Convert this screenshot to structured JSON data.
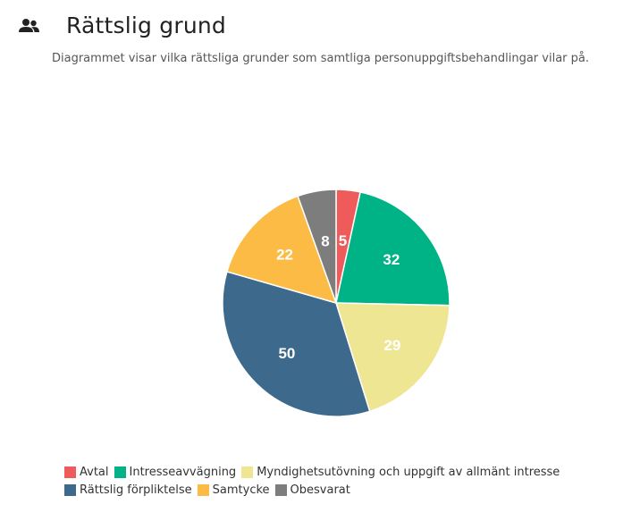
{
  "header": {
    "icon": "people-icon",
    "title": "Rättslig grund",
    "subtitle": "Diagrammet visar vilka rättsliga grunder som samtliga personuppgiftsbehandlingar vilar på."
  },
  "chart_data": {
    "type": "pie",
    "title": "",
    "categories": [
      "Avtal",
      "Intresseavvägning",
      "Myndighetsutövning och uppgift av allmänt intresse",
      "Rättslig förpliktelse",
      "Samtycke",
      "Obesvarat"
    ],
    "values": [
      5,
      32,
      29,
      50,
      22,
      8
    ],
    "colors": [
      "#ef5a5a",
      "#00b386",
      "#efe694",
      "#3d6a8c",
      "#fbbb45",
      "#7d7d7d"
    ],
    "labels_inside": true,
    "legend_placement": "bottom-left"
  },
  "legend": {
    "rows": [
      [
        {
          "label": "Avtal",
          "color": "#ef5a5a"
        },
        {
          "label": "Intresseavvägning",
          "color": "#00b386"
        },
        {
          "label": "Myndighetsutövning och uppgift av allmänt intresse",
          "color": "#efe694"
        }
      ],
      [
        {
          "label": "Rättslig förpliktelse",
          "color": "#3d6a8c"
        },
        {
          "label": "Samtycke",
          "color": "#fbbb45"
        },
        {
          "label": "Obesvarat",
          "color": "#7d7d7d"
        }
      ]
    ]
  }
}
